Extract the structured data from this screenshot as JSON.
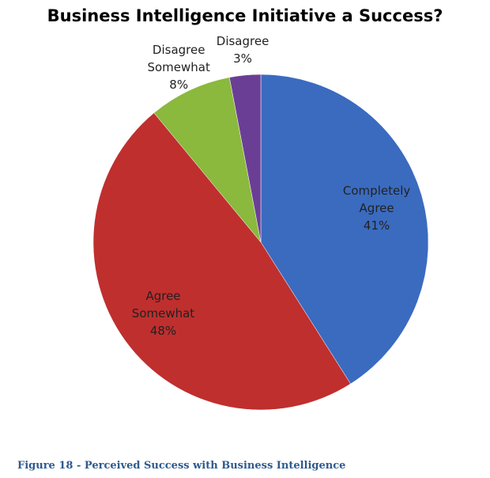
{
  "chart_data": {
    "type": "pie",
    "title": "Business Intelligence Initiative a Success?",
    "categories": [
      "Completely Agree",
      "Agree Somewhat",
      "Disagree Somewhat",
      "Disagree"
    ],
    "values": [
      41,
      48,
      8,
      3
    ],
    "value_labels": [
      "41%",
      "48%",
      "8%",
      "3%"
    ],
    "colors": [
      "#3a6bbf",
      "#bf2f2e",
      "#8ab93d",
      "#6b3e95"
    ]
  },
  "caption": "Figure 18 - Perceived Success with Business Intelligence"
}
